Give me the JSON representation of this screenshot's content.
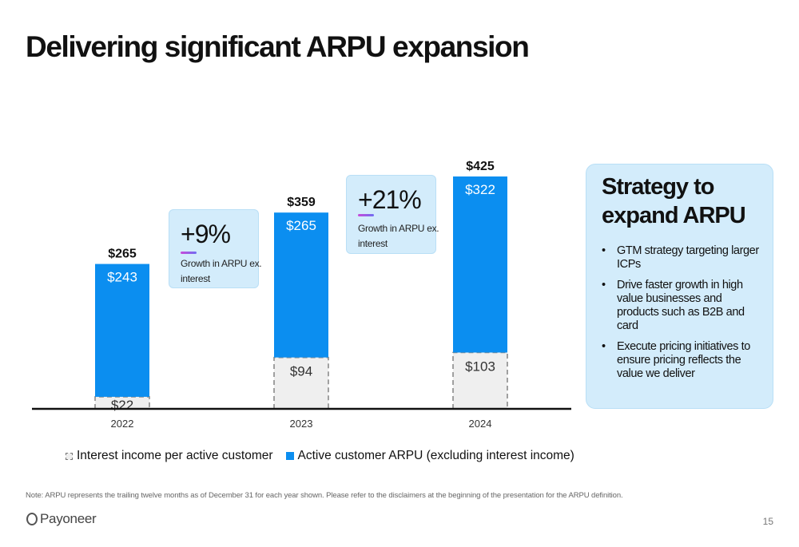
{
  "title": "Delivering significant ARPU expansion",
  "chart_data": {
    "type": "bar",
    "stacked": true,
    "categories": [
      "2022",
      "2023",
      "2024"
    ],
    "series": [
      {
        "name": "Interest income per active customer",
        "values": [
          22,
          94,
          103
        ],
        "color": "#efefef",
        "style": "dashed"
      },
      {
        "name": "Active customer ARPU (excluding interest income)",
        "values": [
          243,
          265,
          322
        ],
        "color": "#0b8ef0"
      }
    ],
    "value_labels": [
      [
        "$22",
        "$94",
        "$103"
      ],
      [
        "$243",
        "$265",
        "$322"
      ]
    ],
    "totals": [
      "$265",
      "$359",
      "$425"
    ],
    "total_values": [
      265,
      359,
      425
    ],
    "ylim": [
      0,
      425
    ],
    "legend_position": "bottom-left",
    "grid": false
  },
  "callouts": [
    {
      "value": "+9%",
      "desc": "Growth in ARPU ex. interest"
    },
    {
      "value": "+21%",
      "desc": "Growth in ARPU ex. interest"
    }
  ],
  "strategy": {
    "heading": "Strategy to expand ARPU",
    "bullets": [
      "GTM strategy targeting larger ICPs",
      "Drive faster growth in high value businesses and products such as B2B and card",
      "Execute pricing initiatives to ensure pricing reflects the value we deliver"
    ]
  },
  "legend": [
    "Interest income per active customer",
    "Active customer ARPU (excluding interest income)"
  ],
  "note": "Note: ARPU represents the trailing twelve months as of December 31 for each year shown. Please refer to the disclaimers at the beginning of the presentation for the ARPU definition.",
  "logo": "Payoneer",
  "page_number": "15"
}
